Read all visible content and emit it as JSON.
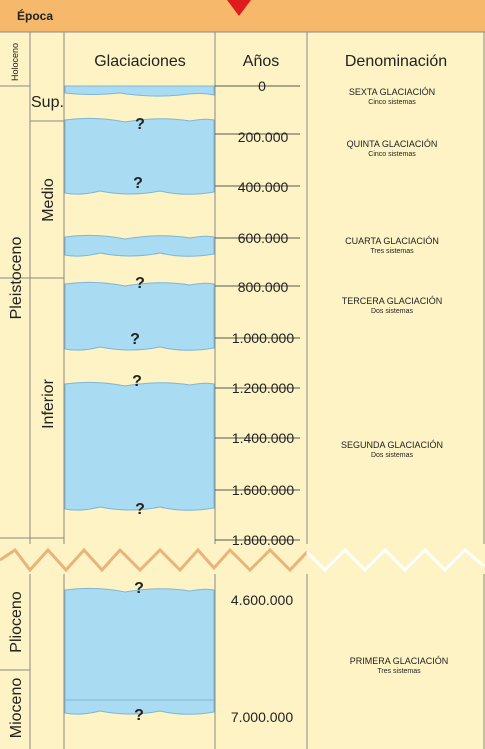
{
  "header": {
    "epoca_label": "Época"
  },
  "columns": {
    "glaciaciones": "Glaciaciones",
    "anos": "Años",
    "denominacion": "Denominación"
  },
  "epochs": {
    "holoceno": "Holoceno",
    "pleistoceno": "Pleistoceno",
    "plioceno": "Plioceno",
    "mioceno": "Mioceno"
  },
  "subdivisions": {
    "superior": "Sup.",
    "medio": "Medio",
    "inferior": "Inferior"
  },
  "years": [
    "0",
    "200.000",
    "400.000",
    "600.000",
    "800.000",
    "1.000.000",
    "1.200.000",
    "1.400.000",
    "1.600.000",
    "1.800.000",
    "4.600.000",
    "7.000.000"
  ],
  "glaciations": [
    {
      "name": "SEXTA GLACIACIÓN",
      "detail": "Cinco sistemas"
    },
    {
      "name": "QUINTA GLACIACIÓN",
      "detail": "Cinco sistemas"
    },
    {
      "name": "CUARTA GLACIACIÓN",
      "detail": "Tres sistemas"
    },
    {
      "name": "TERCERA GLACIACIÓN",
      "detail": "Dos sistemas"
    },
    {
      "name": "SEGUNDA GLACIACIÓN",
      "detail": "Dos sistemas"
    },
    {
      "name": "PRIMERA GLACIACIÓN",
      "detail": "Tres sistemas"
    }
  ],
  "unknown_mark": "?",
  "colors": {
    "background": "#fdf3c4",
    "header": "#f6b86b",
    "ice": "#a9dcf2",
    "grid": "#8a8a8a",
    "pointer": "#e01b1b",
    "break_line": "#e9b47a"
  }
}
